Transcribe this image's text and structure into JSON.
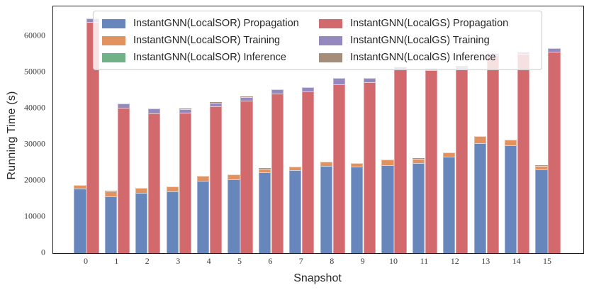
{
  "chart_data": {
    "type": "bar",
    "stacked": true,
    "grouped": true,
    "title": "",
    "xlabel": "Snapshot",
    "ylabel": "Running Time (s)",
    "categories": [
      "0",
      "1",
      "2",
      "3",
      "4",
      "5",
      "6",
      "7",
      "8",
      "9",
      "10",
      "11",
      "12",
      "13",
      "14",
      "15"
    ],
    "ylim": [
      0,
      68200
    ],
    "yticks": [
      0,
      10000,
      20000,
      30000,
      40000,
      50000,
      60000
    ],
    "grid": false,
    "legend_position": "upper center, 2 columns",
    "groups": [
      {
        "name": "LocalSOR",
        "series_indexes": [
          0,
          1,
          2
        ]
      },
      {
        "name": "LocalGS",
        "series_indexes": [
          3,
          4,
          5
        ]
      }
    ],
    "series": [
      {
        "name": "InstantGNN(LocalSOR) Propagation",
        "color": "#6787bc",
        "values": [
          17800,
          15700,
          16650,
          17000,
          20050,
          20400,
          22350,
          22850,
          24150,
          23850,
          24350,
          24850,
          26600,
          30400,
          29750,
          23100
        ]
      },
      {
        "name": "InstantGNN(LocalSOR) Training",
        "color": "#e2925f",
        "values": [
          1000,
          1400,
          1300,
          1400,
          1300,
          1350,
          1050,
          1000,
          1100,
          1000,
          1450,
          1300,
          1150,
          1950,
          1600,
          1050
        ]
      },
      {
        "name": "InstantGNN(LocalSOR) Inference",
        "color": "#6fb287",
        "values": [
          60,
          60,
          60,
          60,
          60,
          60,
          60,
          60,
          60,
          60,
          60,
          60,
          60,
          60,
          60,
          60
        ]
      },
      {
        "name": "InstantGNN(LocalGS) Propagation",
        "color": "#d2696d",
        "values": [
          63950,
          40200,
          38550,
          38750,
          40500,
          42200,
          44000,
          44750,
          46700,
          47200,
          50800,
          50500,
          50900,
          54700,
          55000,
          55650
        ]
      },
      {
        "name": "InstantGNN(LocalGS) Training",
        "color": "#9488bf",
        "values": [
          900,
          1150,
          1400,
          1100,
          1100,
          1000,
          1200,
          1100,
          1650,
          1250,
          700,
          600,
          700,
          600,
          650,
          1000
        ]
      },
      {
        "name": "InstantGNN(LocalGS) Inference",
        "color": "#a48d79",
        "values": [
          60,
          60,
          60,
          60,
          60,
          60,
          60,
          60,
          60,
          60,
          60,
          60,
          60,
          60,
          60,
          60
        ]
      }
    ]
  }
}
